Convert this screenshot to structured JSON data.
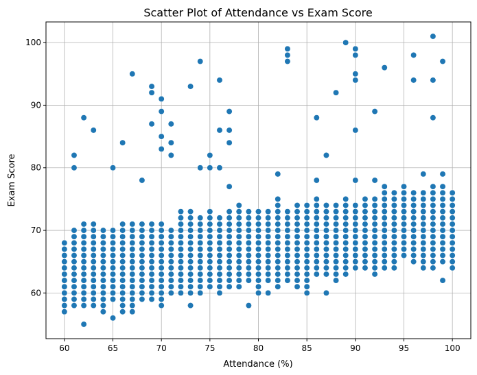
{
  "chart_data": {
    "type": "scatter",
    "title": "Scatter Plot of Attendance vs Exam Score",
    "xlabel": "Attendance (%)",
    "ylabel": "Exam Score",
    "xlim": [
      58.1,
      101.9
    ],
    "ylim": [
      52.7,
      103.3
    ],
    "xticks": [
      60,
      65,
      70,
      75,
      80,
      85,
      90,
      95,
      100
    ],
    "yticks": [
      60,
      70,
      80,
      90,
      100
    ],
    "grid": true,
    "color": "#1f77b4",
    "columns_note": "each column: [attendance, min score, max score] filled at integer scores",
    "columns": [
      [
        60,
        57,
        68
      ],
      [
        61,
        58,
        70
      ],
      [
        62,
        58,
        71
      ],
      [
        63,
        58,
        71
      ],
      [
        64,
        57,
        70
      ],
      [
        65,
        59,
        70
      ],
      [
        66,
        57,
        71
      ],
      [
        67,
        57,
        71
      ],
      [
        68,
        59,
        71
      ],
      [
        69,
        59,
        71
      ],
      [
        70,
        58,
        71
      ],
      [
        71,
        60,
        70
      ],
      [
        72,
        60,
        73
      ],
      [
        73,
        60,
        73
      ],
      [
        74,
        60,
        72
      ],
      [
        75,
        61,
        73
      ],
      [
        76,
        60,
        72
      ],
      [
        77,
        61,
        73
      ],
      [
        78,
        61,
        74
      ],
      [
        79,
        62,
        73
      ],
      [
        80,
        61,
        73
      ],
      [
        81,
        62,
        73
      ],
      [
        82,
        61,
        75
      ],
      [
        83,
        62,
        73
      ],
      [
        84,
        61,
        74
      ],
      [
        85,
        61,
        74
      ],
      [
        86,
        63,
        75
      ],
      [
        87,
        63,
        74
      ],
      [
        88,
        62,
        74
      ],
      [
        89,
        63,
        75
      ],
      [
        90,
        64,
        74
      ],
      [
        91,
        64,
        75
      ],
      [
        92,
        63,
        75
      ],
      [
        93,
        64,
        77
      ],
      [
        94,
        64,
        76
      ],
      [
        95,
        66,
        77
      ],
      [
        96,
        65,
        76
      ],
      [
        97,
        64,
        76
      ],
      [
        98,
        64,
        77
      ],
      [
        99,
        65,
        77
      ],
      [
        100,
        64,
        76
      ]
    ],
    "extra_points": [
      [
        61,
        80
      ],
      [
        61,
        82
      ],
      [
        62,
        55
      ],
      [
        62,
        88
      ],
      [
        63,
        86
      ],
      [
        65,
        56
      ],
      [
        65,
        80
      ],
      [
        66,
        84
      ],
      [
        67,
        95
      ],
      [
        68,
        78
      ],
      [
        69,
        87
      ],
      [
        69,
        92
      ],
      [
        69,
        93
      ],
      [
        70,
        83
      ],
      [
        70,
        85
      ],
      [
        70,
        89
      ],
      [
        70,
        91
      ],
      [
        71,
        82
      ],
      [
        71,
        84
      ],
      [
        71,
        87
      ],
      [
        73,
        58
      ],
      [
        73,
        93
      ],
      [
        74,
        80
      ],
      [
        74,
        97
      ],
      [
        75,
        80
      ],
      [
        75,
        82
      ],
      [
        76,
        80
      ],
      [
        76,
        86
      ],
      [
        76,
        94
      ],
      [
        77,
        77
      ],
      [
        77,
        84
      ],
      [
        77,
        86
      ],
      [
        77,
        89
      ],
      [
        79,
        58
      ],
      [
        80,
        60
      ],
      [
        81,
        60
      ],
      [
        82,
        79
      ],
      [
        83,
        97
      ],
      [
        83,
        98
      ],
      [
        83,
        99
      ],
      [
        85,
        60
      ],
      [
        86,
        78
      ],
      [
        86,
        88
      ],
      [
        87,
        60
      ],
      [
        87,
        82
      ],
      [
        88,
        92
      ],
      [
        89,
        100
      ],
      [
        90,
        78
      ],
      [
        90,
        86
      ],
      [
        90,
        94
      ],
      [
        90,
        95
      ],
      [
        90,
        98
      ],
      [
        90,
        99
      ],
      [
        92,
        78
      ],
      [
        92,
        89
      ],
      [
        93,
        96
      ],
      [
        96,
        94
      ],
      [
        96,
        98
      ],
      [
        97,
        79
      ],
      [
        98,
        88
      ],
      [
        98,
        94
      ],
      [
        98,
        101
      ],
      [
        99,
        62
      ],
      [
        99,
        79
      ],
      [
        99,
        97
      ]
    ]
  }
}
